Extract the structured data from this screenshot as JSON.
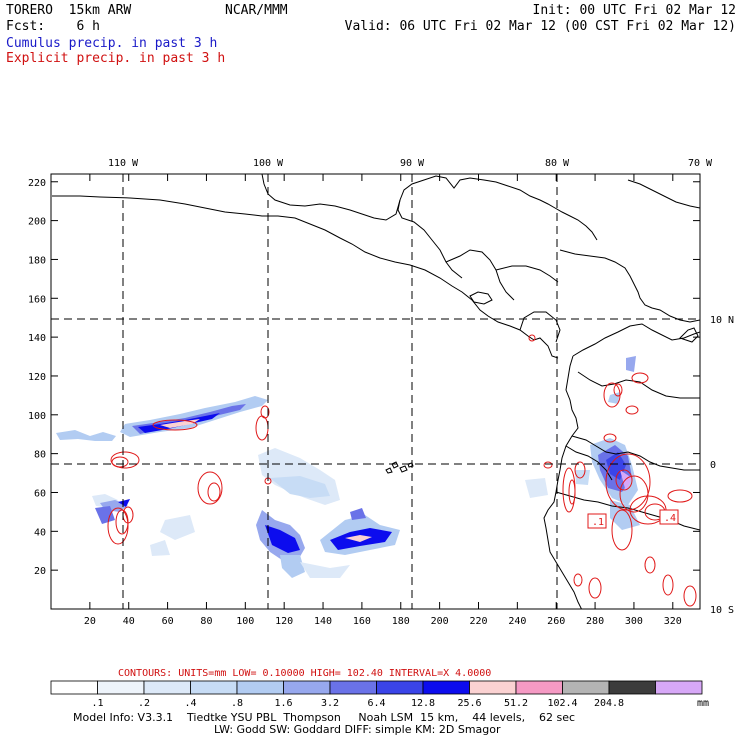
{
  "header": {
    "left_line1": "TORERO  15km ARW",
    "center_line1": "NCAR/MMM",
    "right_line1": "Init: 00 UTC Fri 02 Mar 12",
    "left_line2": "Fcst:    6 h",
    "right_line2": "Valid: 06 UTC Fri 02 Mar 12 (00 CST Fri 02 Mar 12)",
    "cumulus": "Cumulus precip. in past 3 h",
    "explicit": "Explicit precip. in past 3 h"
  },
  "map": {
    "lon_labels": [
      "110 W",
      "100 W",
      "90 W",
      "80 W",
      "70 W"
    ],
    "lat_labels": [
      "10 N",
      "0",
      "10 S"
    ],
    "y_ticks": [
      "220",
      "200",
      "180",
      "160",
      "140",
      "120",
      "100",
      "80",
      "60",
      "40",
      "20"
    ],
    "x_ticks": [
      "20",
      "40",
      "60",
      "80",
      "100",
      "120",
      "140",
      "160",
      "180",
      "200",
      "220",
      "240",
      "260",
      "280",
      "300",
      "320"
    ],
    "contour_labels": [
      ".1",
      ".4"
    ]
  },
  "legend": {
    "contours_text": "CONTOURS:  UNITS=mm  LOW= 0.10000       HIGH=  102.40       INTERVAL=X  4.0000",
    "labels": [
      ".1",
      ".2",
      ".4",
      ".8",
      "1.6",
      "3.2",
      "6.4",
      "12.8",
      "25.6",
      "51.2",
      "102.4",
      "204.8"
    ],
    "unit": "mm",
    "colors": [
      "#ffffff",
      "#eef4fb",
      "#dde9f8",
      "#c7dcf5",
      "#b2ccf2",
      "#97a8ee",
      "#6a72e8",
      "#3a44e8",
      "#0c0cee",
      "#fbd2d2",
      "#f59ac4",
      "#b4b4b4",
      "#3c3c3c",
      "#d7a8f7"
    ]
  },
  "footer": {
    "line1": "Model Info: V3.3.1    Tiedtke YSU PBL  Thompson     Noah LSM  15 km,    44 levels,    62 sec",
    "line2": "LW: Godd SW: Goddard DIFF: simple KM: 2D Smagor"
  }
}
